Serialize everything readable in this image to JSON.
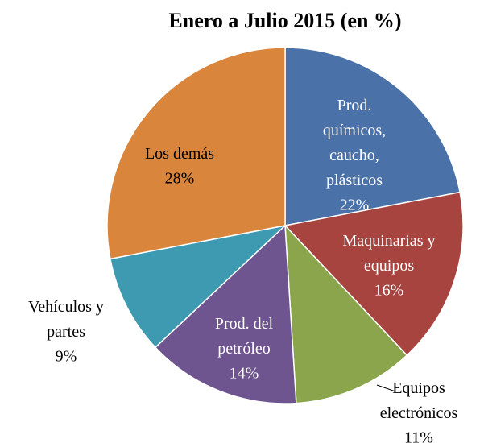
{
  "chart_data": {
    "type": "pie",
    "title": "Enero a Julio 2015 (en %)",
    "categories": [
      "Prod. químicos, caucho, plásticos",
      "Maquinarias y equipos",
      "Equipos electrónicos",
      "Prod. del petróleo",
      "Vehículos y partes",
      "Los demás"
    ],
    "values": [
      22,
      16,
      11,
      14,
      9,
      28
    ],
    "value_labels": [
      "22%",
      "16%",
      "11%",
      "14%",
      "9%",
      "28%"
    ],
    "colors": [
      "#4a72a8",
      "#a8443f",
      "#8aa54c",
      "#6f558f",
      "#3d9ab0",
      "#d9853c"
    ]
  }
}
